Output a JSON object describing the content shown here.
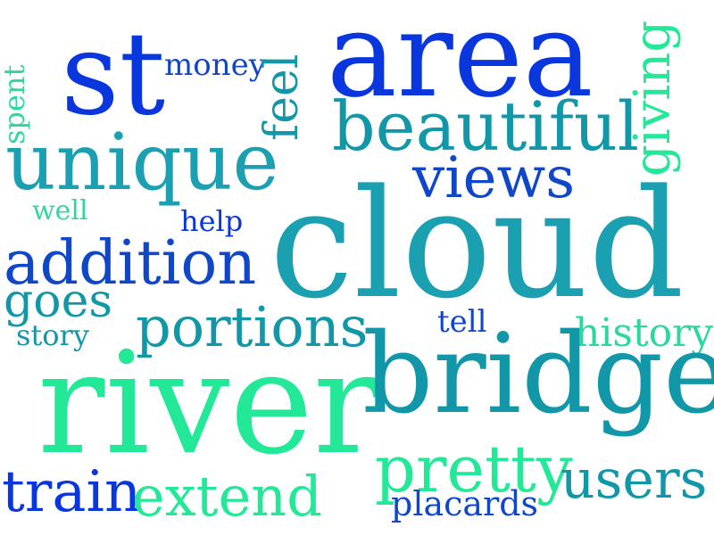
{
  "colors": {
    "blue": "#0a36dd",
    "royal": "#1046c8",
    "teal": "#1297a8",
    "cyan": "#1aa0b0",
    "green": "#22e898",
    "mint": "#2ed6a0"
  },
  "words": {
    "area": "area",
    "st": "st",
    "money": "money",
    "feel": "feel",
    "giving": "giving",
    "spent": "spent",
    "unique": "unique",
    "beautiful": "beautiful",
    "views": "views",
    "well": "well",
    "help": "help",
    "cloud": "cloud",
    "addition": "addition",
    "goes": "goes",
    "portions": "portions",
    "tell": "tell",
    "history": "history",
    "story": "story",
    "river": "river",
    "bridge": "bridge",
    "pretty": "pretty",
    "users": "users",
    "train": "train",
    "extend": "extend",
    "placards": "placards"
  }
}
